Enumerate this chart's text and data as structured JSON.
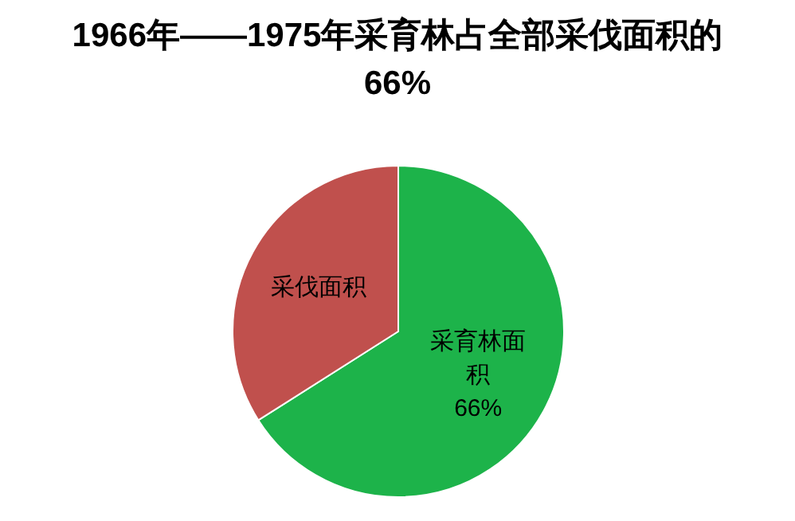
{
  "chart_data": {
    "type": "pie",
    "title": "1966年——1975年采育林占全部采伐面积的66%",
    "categories": [
      "采育林面积",
      "采伐面积"
    ],
    "values": [
      66,
      34
    ],
    "colors": [
      "#1db34a",
      "#c0504d"
    ],
    "value_labels": [
      "66%",
      null
    ]
  }
}
